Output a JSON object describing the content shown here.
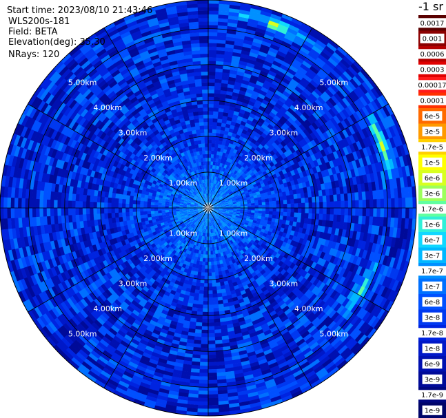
{
  "header": {
    "start_time": "Start time: 2023/08/10 21:43:46",
    "instrument": "WLS200s-181",
    "field": "Field: BETA",
    "elevation": "Elevation(deg): 35.30",
    "nrays": "NRays: 120"
  },
  "colorbar": {
    "unit_title": "-1 sr",
    "labels": [
      "0.0017",
      "0.001",
      "0.0006",
      "0.0003",
      "0.00017",
      "0.0001",
      "6e-5",
      "3e-5",
      "1.7e-5",
      "1e-5",
      "6e-6",
      "3e-6",
      "1.7e-6",
      "1e-6",
      "6e-7",
      "3e-7",
      "1.7e-7",
      "1e-7",
      "6e-8",
      "3e-8",
      "1.7e-8",
      "1e-8",
      "6e-9",
      "3e-9",
      "1.7e-9",
      "1e-9"
    ],
    "colors": [
      "#5a0000",
      "#8b0000",
      "#b40000",
      "#e00000",
      "#ff1a1a",
      "#ff3000",
      "#ff6a00",
      "#ff9a00",
      "#ffd000",
      "#ffff00",
      "#d8ff20",
      "#9cff5c",
      "#60ffa0",
      "#30f0d8",
      "#10d8ff",
      "#00b8ff",
      "#0090ff",
      "#0070ff",
      "#0050ff",
      "#0038f0",
      "#0024e0",
      "#0018c8",
      "#0010b0",
      "#000a98",
      "#000680",
      "#000468"
    ]
  },
  "chart_data": {
    "type": "heatmap",
    "projection": "polar (PPI scan)",
    "field": "BETA",
    "elevation_deg": 35.3,
    "n_rays": 120,
    "start_time": "2023/08/10 21:43:46",
    "range_rings": [
      {
        "range_km": 1.0,
        "label": "1.00km"
      },
      {
        "range_km": 2.0,
        "label": "2.00km"
      },
      {
        "range_km": 3.0,
        "label": "3.00km"
      },
      {
        "range_km": 4.0,
        "label": "4.00km"
      },
      {
        "range_km": 5.0,
        "label": "5.00km"
      }
    ],
    "max_range_km": 5.8,
    "azimuth_spokes_deg": [
      0,
      30,
      60,
      90,
      120,
      150,
      180,
      210,
      240,
      270,
      300,
      330
    ],
    "color_scale": "log",
    "colorbar_range": [
      1e-09,
      0.0017
    ],
    "typical_value_range": [
      1.7e-08,
      1.7e-06
    ],
    "near_center_value": 1.7e-07,
    "features": [
      {
        "azimuth_deg": 70,
        "range_km": 5.1,
        "value_approx": 1e-05
      },
      {
        "azimuth_deg": 20,
        "range_km": 5.4,
        "value_approx": 1e-05
      },
      {
        "azimuth_deg": 120,
        "range_km": 4.8,
        "value_approx": 3e-06
      }
    ]
  }
}
